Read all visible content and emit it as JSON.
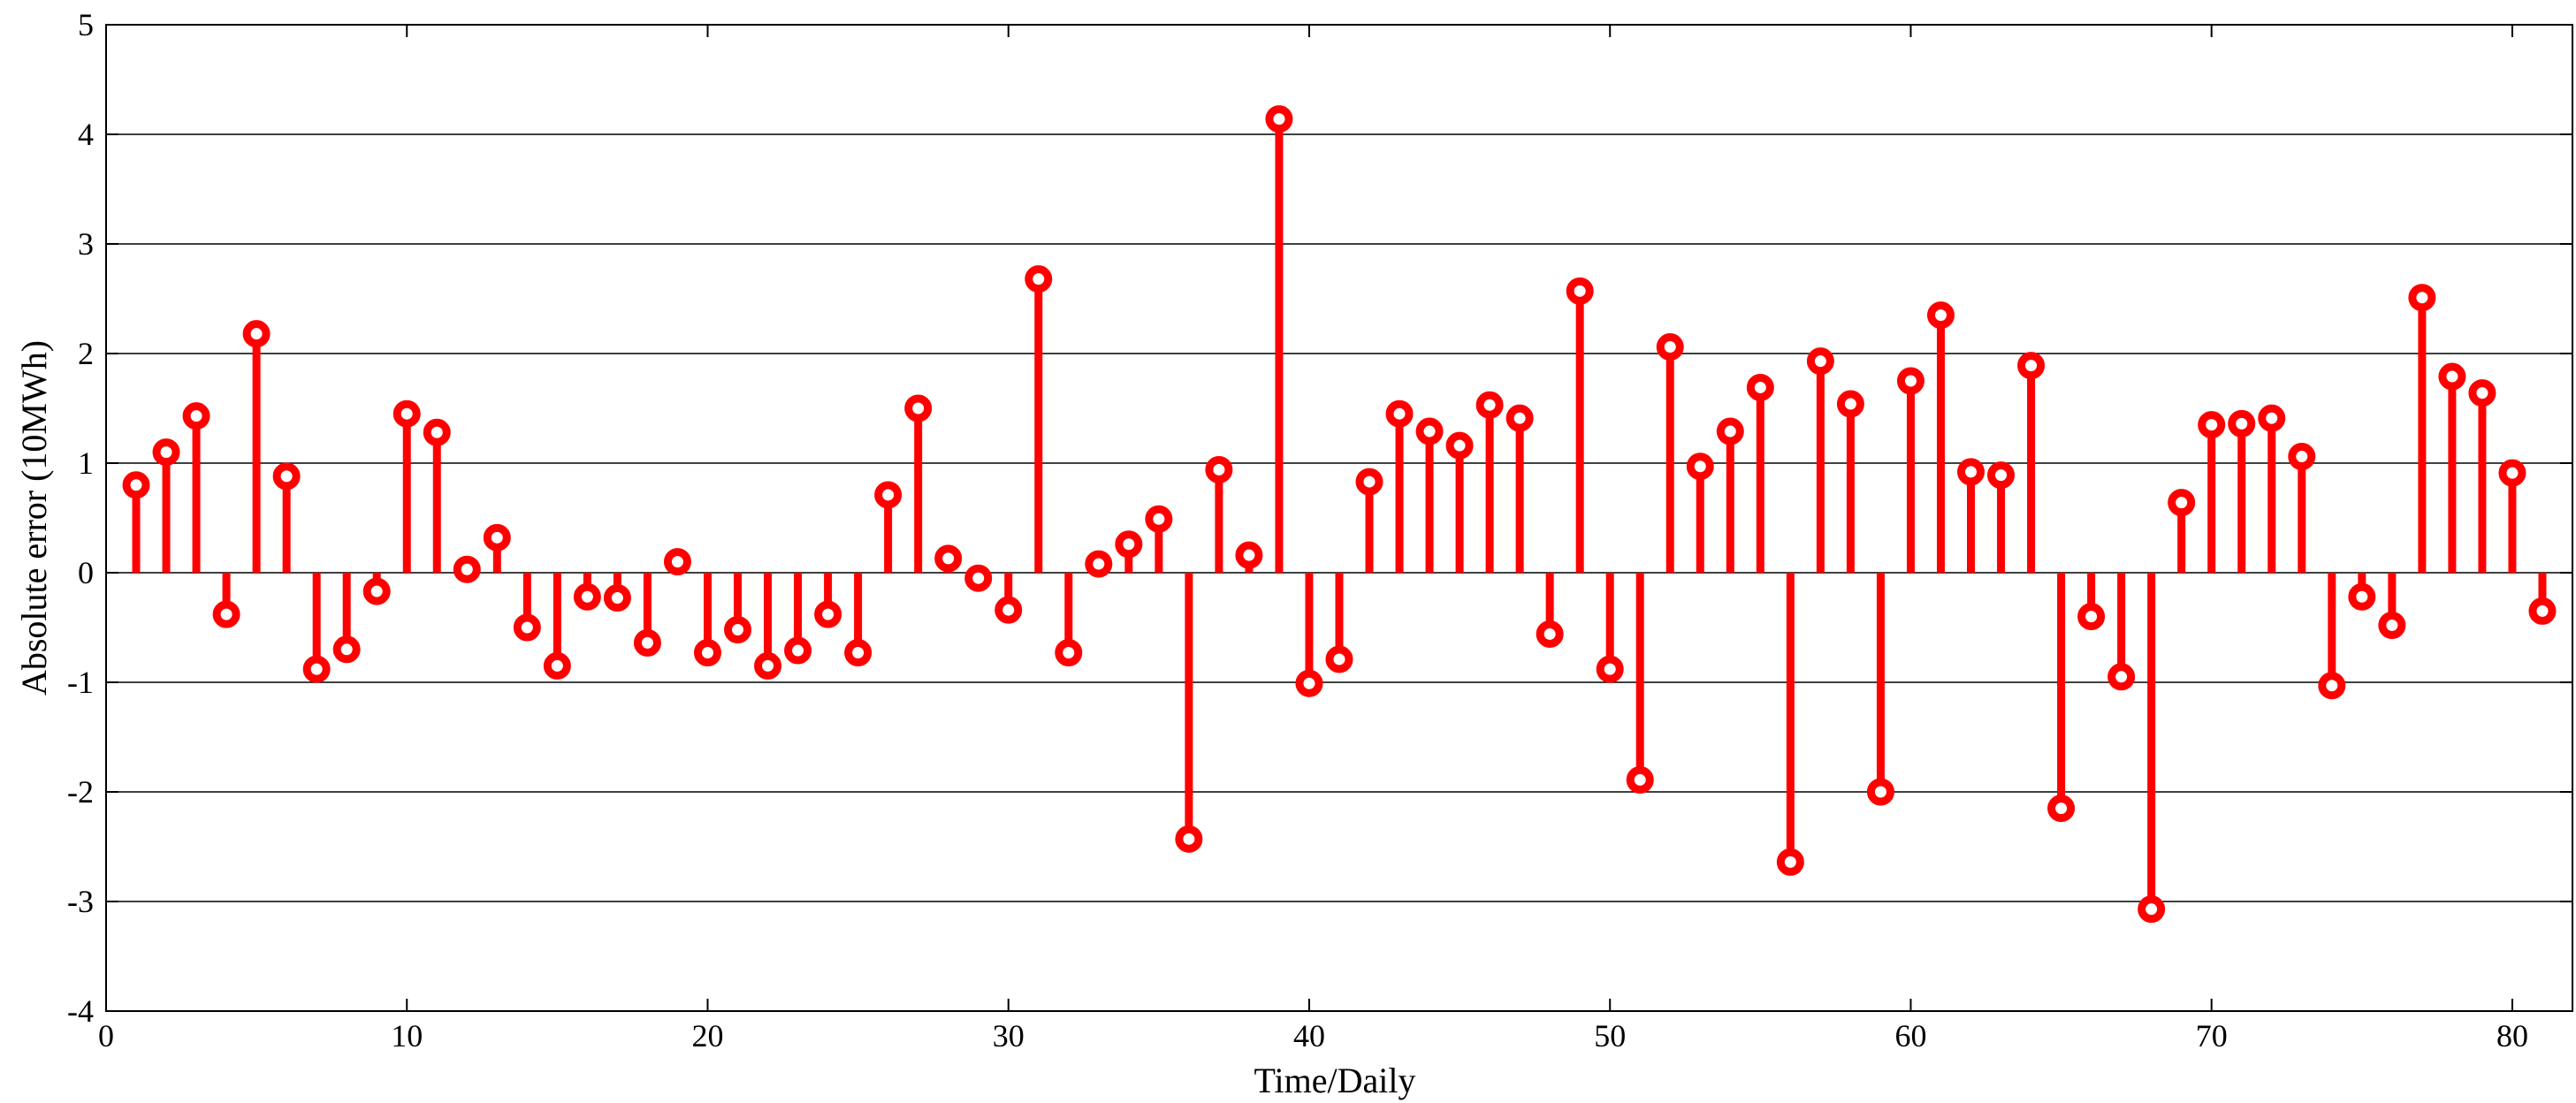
{
  "chart_data": {
    "type": "stem",
    "xlabel": "Time/Daily",
    "ylabel": "Absolute error (10MWh)",
    "xlim": [
      0,
      82
    ],
    "ylim": [
      -4,
      5
    ],
    "xticks": [
      0,
      10,
      20,
      30,
      40,
      50,
      60,
      70,
      80
    ],
    "yticks": [
      -4,
      -3,
      -2,
      -1,
      0,
      1,
      2,
      3,
      4,
      5
    ],
    "grid": "horizontal",
    "color": "#ff0000",
    "x": [
      1,
      2,
      3,
      4,
      5,
      6,
      7,
      8,
      9,
      10,
      11,
      12,
      13,
      14,
      15,
      16,
      17,
      18,
      19,
      20,
      21,
      22,
      23,
      24,
      25,
      26,
      27,
      28,
      29,
      30,
      31,
      32,
      33,
      34,
      35,
      36,
      37,
      38,
      39,
      40,
      41,
      42,
      43,
      44,
      45,
      46,
      47,
      48,
      49,
      50,
      51,
      52,
      53,
      54,
      55,
      56,
      57,
      58,
      59,
      60,
      61,
      62,
      63,
      64,
      65,
      66,
      67,
      68,
      69,
      70,
      71,
      72,
      73,
      74,
      75,
      76,
      77,
      78,
      79,
      80,
      81
    ],
    "values": [
      0.8,
      1.1,
      1.43,
      -0.38,
      2.18,
      0.88,
      -0.88,
      -0.7,
      -0.17,
      1.45,
      1.28,
      0.03,
      0.32,
      -0.5,
      -0.85,
      -0.22,
      -0.23,
      -0.64,
      0.1,
      -0.73,
      -0.52,
      -0.85,
      -0.71,
      -0.38,
      -0.73,
      0.71,
      1.5,
      0.13,
      -0.05,
      -0.34,
      2.68,
      -0.73,
      0.08,
      0.26,
      0.49,
      -2.43,
      0.94,
      0.16,
      4.14,
      -1.01,
      -0.79,
      0.83,
      1.45,
      1.29,
      1.16,
      1.53,
      1.41,
      -0.56,
      2.57,
      -0.88,
      -1.89,
      2.06,
      0.97,
      1.29,
      1.69,
      -2.64,
      1.93,
      1.54,
      -2.0,
      1.75,
      2.35,
      0.92,
      0.89,
      1.89,
      -2.15,
      -0.4,
      -0.95,
      -3.07,
      0.64,
      1.35,
      1.36,
      1.41,
      1.06,
      -1.03,
      -0.22,
      -0.48,
      2.51,
      1.79,
      1.64,
      0.91,
      -0.35
    ]
  }
}
